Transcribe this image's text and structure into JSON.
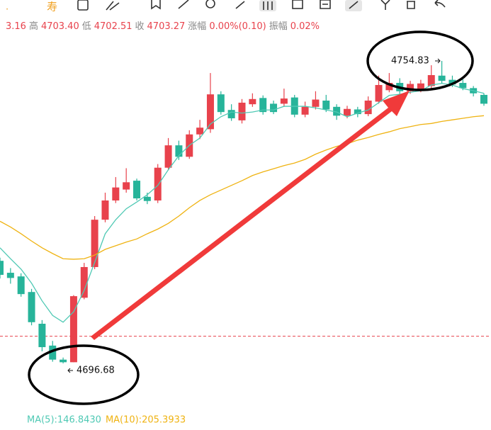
{
  "toolbar": {
    "label": "寿"
  },
  "stats": [
    "3.16",
    "高",
    "4703.40",
    "低",
    "4702.51",
    "收",
    "4703.27",
    "涨幅",
    "0.00%(0.10)",
    "振幅",
    "0.02%"
  ],
  "chart_data": {
    "type": "candlestick",
    "ylim": [
      4688.23,
      4766.54
    ],
    "up_color": "#e8424c",
    "down_color": "#27b49a",
    "open": [
      4716.4,
      4714.1,
      4713.4,
      4710.4,
      4704.3,
      4700.1,
      4697.4,
      4696.9,
      4709.3,
      4715.2,
      4724.3,
      4728.0,
      4730.1,
      4731.8,
      4728.7,
      4728.0,
      4734.3,
      4738.6,
      4736.4,
      4740.7,
      4741.7,
      4748.4,
      4745.4,
      4743.4,
      4746.5,
      4747.7,
      4746.6,
      4746.6,
      4747.8,
      4744.5,
      4746.0,
      4747.2,
      4746.0,
      4744.3,
      4745.5,
      4744.6,
      4747.0,
      4749.2,
      4750.6,
      4749.0,
      4749.2,
      4750.0,
      4752.0,
      4751.2,
      4750.6,
      4749.6,
      4748.3
    ],
    "high": [
      4717.0,
      4715.0,
      4714.0,
      4711.0,
      4705.0,
      4701.0,
      4697.8,
      4709.8,
      4716.0,
      4725.0,
      4729.5,
      4732.5,
      4734.2,
      4732.2,
      4729.5,
      4735.0,
      4740.0,
      4739.5,
      4741.5,
      4743.5,
      4752.5,
      4749.0,
      4746.5,
      4747.5,
      4748.6,
      4748.2,
      4747.2,
      4749.5,
      4748.3,
      4747.0,
      4749.0,
      4748.3,
      4746.5,
      4746.2,
      4746.0,
      4748.0,
      4752.0,
      4752.5,
      4751.5,
      4751.0,
      4751.2,
      4754.0,
      4754.83,
      4752.0,
      4751.3,
      4750.0,
      4748.6
    ],
    "low": [
      4713.0,
      4712.0,
      4709.5,
      4704.0,
      4699.0,
      4697.0,
      4696.68,
      4696.9,
      4709.0,
      4714.8,
      4723.8,
      4727.5,
      4729.5,
      4728.0,
      4727.3,
      4727.5,
      4733.8,
      4735.8,
      4736.0,
      4739.8,
      4741.0,
      4744.5,
      4743.3,
      4742.8,
      4746.0,
      4744.5,
      4744.6,
      4746.0,
      4744.0,
      4744.0,
      4745.5,
      4745.0,
      4743.5,
      4743.8,
      4744.0,
      4744.2,
      4746.6,
      4748.8,
      4748.5,
      4748.5,
      4748.8,
      4749.5,
      4750.5,
      4749.8,
      4749.2,
      4748.0,
      4746.2
    ],
    "close": [
      4713.7,
      4713.1,
      4710.0,
      4704.6,
      4699.8,
      4697.4,
      4696.9,
      4709.6,
      4715.2,
      4724.3,
      4728.0,
      4730.5,
      4731.5,
      4728.4,
      4727.9,
      4734.3,
      4738.6,
      4736.4,
      4740.7,
      4742.0,
      4748.4,
      4745.0,
      4743.8,
      4746.8,
      4747.5,
      4745.0,
      4745.0,
      4747.6,
      4744.5,
      4746.0,
      4747.4,
      4745.5,
      4744.3,
      4745.6,
      4744.6,
      4747.2,
      4750.2,
      4750.6,
      4749.0,
      4750.4,
      4750.5,
      4752.1,
      4751.0,
      4750.3,
      4749.6,
      4748.6,
      4746.6
    ],
    "series": [
      {
        "name": "MA(5):146.8430",
        "color": "#4fc9b4",
        "values": [
          4718.9,
          4716.8,
          4714.8,
          4712.1,
          4708.7,
          4705.9,
          4704.6,
          4706.6,
          4710.7,
          4716.1,
          4721.6,
          4724.3,
          4726.4,
          4727.7,
          4729.1,
          4730.9,
          4733.9,
          4736.6,
          4738.6,
          4740.0,
          4742.7,
          4744.1,
          4745.0,
          4744.8,
          4745.0,
          4745.4,
          4745.4,
          4746.1,
          4746.1,
          4746.1,
          4745.8,
          4745.4,
          4745.0,
          4744.1,
          4744.8,
          4745.4,
          4746.8,
          4748.2,
          4748.4,
          4748.8,
          4749.1,
          4750.2,
          4750.5,
          4750.2,
          4749.5,
          4749.1,
          4748.6
        ]
      },
      {
        "name": "MA(10):205.3933",
        "color": "#efb312",
        "values": [
          4724.0,
          4722.9,
          4721.6,
          4720.2,
          4718.9,
          4717.8,
          4716.8,
          4716.7,
          4716.8,
          4717.5,
          4718.6,
          4719.3,
          4720.0,
          4720.6,
          4721.6,
          4722.5,
          4723.6,
          4725.0,
          4726.6,
          4728.0,
          4729.1,
          4730.0,
          4730.9,
          4731.8,
          4732.8,
          4733.5,
          4734.1,
          4734.7,
          4735.2,
          4735.9,
          4736.9,
          4737.7,
          4738.4,
          4738.9,
          4739.6,
          4740.1,
          4740.7,
          4741.2,
          4741.8,
          4742.2,
          4742.6,
          4742.8,
          4743.2,
          4743.5,
          4743.8,
          4744.1,
          4744.3
        ]
      }
    ],
    "reference_line": 4701.9,
    "high_index": 42,
    "low_index": 6
  }
}
